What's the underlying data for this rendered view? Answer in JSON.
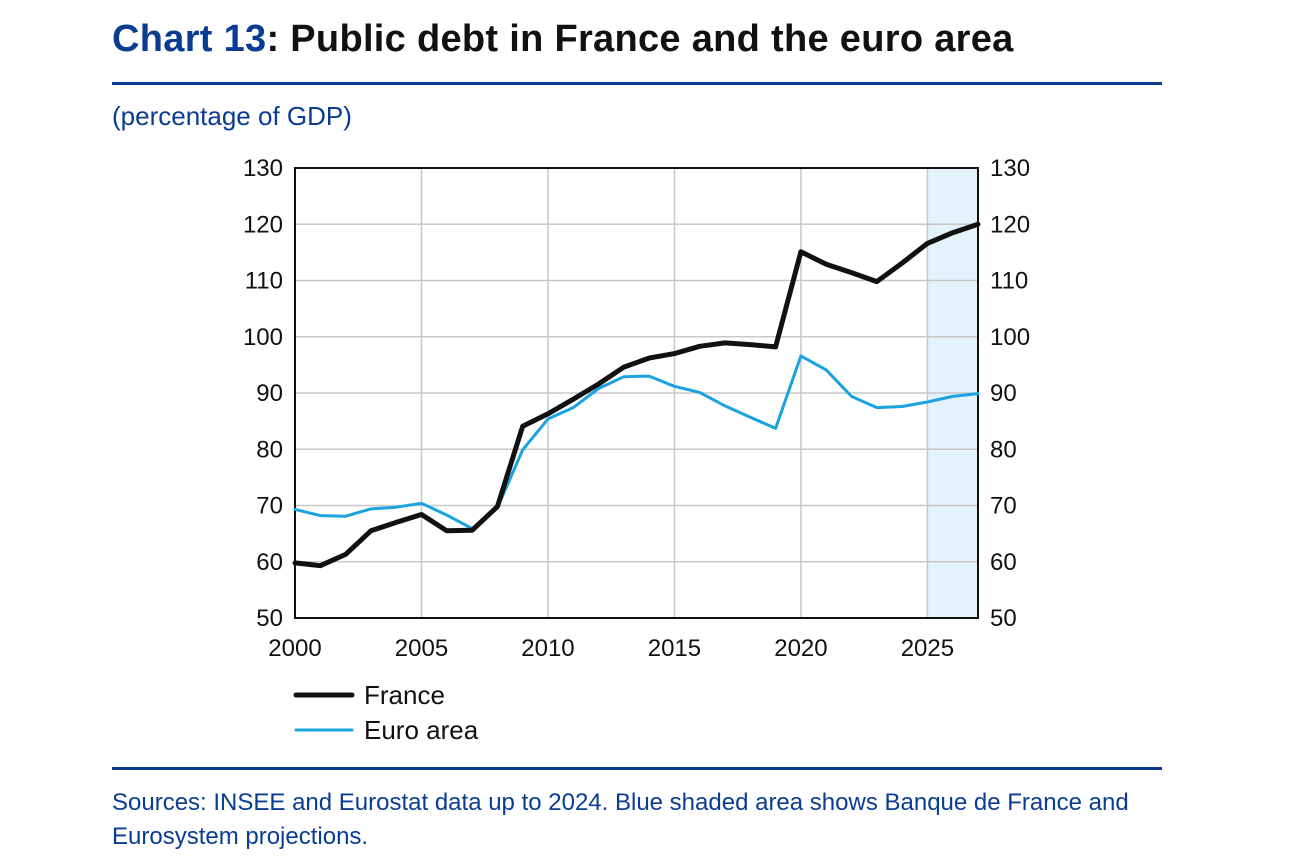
{
  "header": {
    "title_number": "Chart 13",
    "title_text": ": Public debt in France and the euro area",
    "unit_label": "(percentage of GDP)"
  },
  "footer": {
    "sources": "Sources: INSEE and Eurostat data up to 2024. Blue shaded area shows Banque de France and Eurosystem projections."
  },
  "colors": {
    "france": "#111111",
    "euro_area": "#1aa3e0",
    "projection_shade": "#e4f2fb",
    "brand": "#0a3d91",
    "grid": "#c8c8c8"
  },
  "chart_data": {
    "type": "line",
    "title": "Public debt in France and the euro area",
    "ylabel": "percentage of GDP",
    "xlim": [
      2000,
      2027
    ],
    "ylim": [
      50,
      130
    ],
    "y_ticks": [
      50,
      60,
      70,
      80,
      90,
      100,
      110,
      120,
      130
    ],
    "x_ticks": [
      2000,
      2005,
      2010,
      2015,
      2020,
      2025
    ],
    "grid": true,
    "projection_start": 2025,
    "x": [
      2000,
      2001,
      2002,
      2003,
      2004,
      2005,
      2006,
      2007,
      2008,
      2009,
      2010,
      2011,
      2012,
      2013,
      2014,
      2015,
      2016,
      2017,
      2018,
      2019,
      2020,
      2021,
      2022,
      2023,
      2024,
      2025,
      2026,
      2027
    ],
    "series": [
      {
        "name": "France",
        "values": [
          59.8,
          59.3,
          61.3,
          65.5,
          67.0,
          68.4,
          65.5,
          65.6,
          69.8,
          84.1,
          86.3,
          88.9,
          91.6,
          94.6,
          96.2,
          97.0,
          98.3,
          98.9,
          98.6,
          98.2,
          115.1,
          112.9,
          111.4,
          109.8,
          113.1,
          116.6,
          118.5,
          120.0
        ],
        "color": "#111111"
      },
      {
        "name": "Euro area",
        "values": [
          69.3,
          68.2,
          68.1,
          69.4,
          69.7,
          70.4,
          68.3,
          65.9,
          69.6,
          79.9,
          85.4,
          87.4,
          90.8,
          92.9,
          93.0,
          91.2,
          90.1,
          87.7,
          85.7,
          83.7,
          96.6,
          94.1,
          89.4,
          87.4,
          87.6,
          88.4,
          89.4,
          89.9
        ],
        "color": "#1aa3e0"
      }
    ],
    "legend": "bottom-left"
  }
}
